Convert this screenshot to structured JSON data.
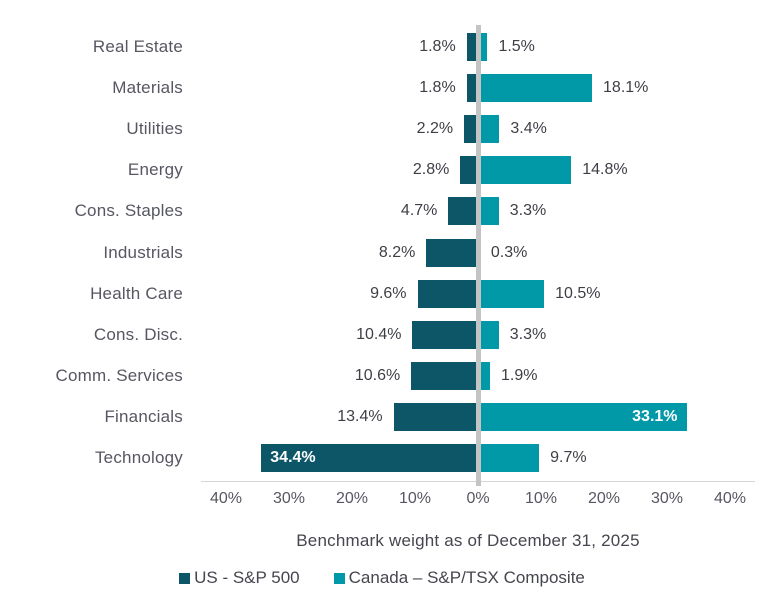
{
  "chart_data": {
    "type": "bar",
    "variant": "diverging-horizontal-bars",
    "categories": [
      "Real Estate",
      "Materials",
      "Utilities",
      "Energy",
      "Cons. Staples",
      "Industrials",
      "Health Care",
      "Cons. Disc.",
      "Comm. Services",
      "Financials",
      "Technology"
    ],
    "series": [
      {
        "name": "US - S&P 500",
        "side": "left",
        "color": "#0d5668",
        "values": [
          1.8,
          1.8,
          2.2,
          2.8,
          4.7,
          8.2,
          9.6,
          10.4,
          10.6,
          13.4,
          34.4
        ],
        "value_labels": [
          "1.8%",
          "1.8%",
          "2.2%",
          "2.8%",
          "4.7%",
          "8.2%",
          "9.6%",
          "10.4%",
          "10.6%",
          "13.4%",
          "34.4%"
        ],
        "labels_inside": [
          false,
          false,
          false,
          false,
          false,
          false,
          false,
          false,
          false,
          false,
          true
        ]
      },
      {
        "name": "Canada – S&P/TSX Composite",
        "side": "right",
        "color": "#0199a7",
        "values": [
          1.5,
          18.1,
          3.4,
          14.8,
          3.3,
          0.3,
          10.5,
          3.3,
          1.9,
          33.1,
          9.7
        ],
        "value_labels": [
          "1.5%",
          "18.1%",
          "3.4%",
          "14.8%",
          "3.3%",
          "0.3%",
          "10.5%",
          "3.3%",
          "1.9%",
          "33.1%",
          "9.7%"
        ],
        "labels_inside": [
          false,
          false,
          false,
          false,
          false,
          false,
          false,
          false,
          false,
          true,
          false
        ]
      }
    ],
    "xlabel": "Benchmark weight as of December 31, 2025",
    "x_ticks": [
      "40%",
      "30%",
      "20%",
      "10%",
      "0%",
      "10%",
      "20%",
      "30%",
      "40%"
    ],
    "xlim": [
      -40,
      40
    ],
    "grid": false,
    "legend_position": "bottom",
    "colors": {
      "zero_line": "#c3c4c4",
      "axis_line": "#d6d6d6",
      "value_label": "#3e3f46",
      "inside_value_label": "#ffffff",
      "category_label": "#565761"
    }
  }
}
